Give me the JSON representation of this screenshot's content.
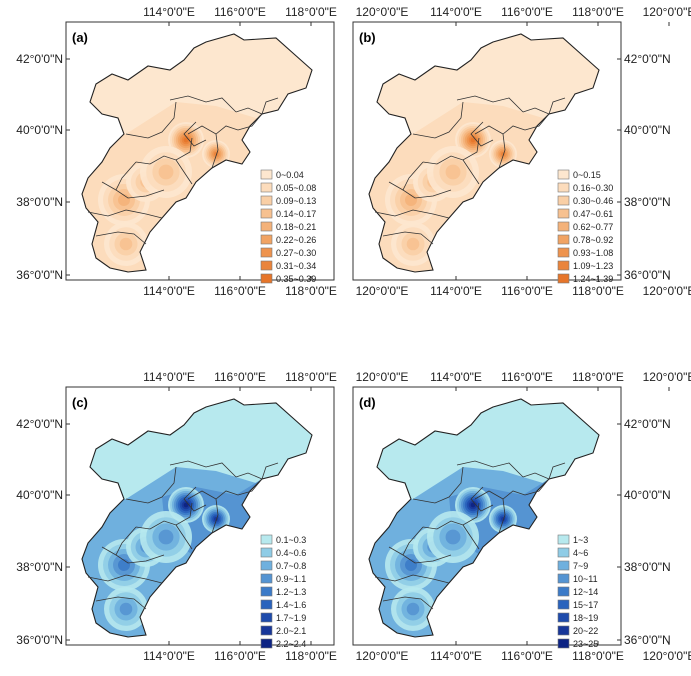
{
  "axes": {
    "lon_ticks": [
      "114°0'0\"E",
      "116°0'0\"E",
      "118°0'0\"E",
      "120°0'0\"E"
    ],
    "lat_ticks": [
      "42°0'0\"N",
      "40°0'0\"N",
      "38°0'0\"N",
      "36°0'0\"N"
    ]
  },
  "panels": [
    {
      "label": "(a)",
      "scheme": "orange",
      "legend_side": "left",
      "legend": [
        "0~0.04",
        "0.05~0.08",
        "0.09~0.13",
        "0.14~0.17",
        "0.18~0.21",
        "0.22~0.26",
        "0.27~0.30",
        "0.31~0.34",
        "0.35~0.39"
      ],
      "colors": [
        "#fde7cf",
        "#fcdcbc",
        "#f9cfa6",
        "#f7c190",
        "#f4b27a",
        "#f1a363",
        "#ee934e",
        "#ea843b",
        "#e6752a"
      ]
    },
    {
      "label": "(b)",
      "scheme": "orange",
      "legend_side": "right",
      "legend": [
        "0~0.15",
        "0.16~0.30",
        "0.30~0.46",
        "0.47~0.61",
        "0.62~0.77",
        "0.78~0.92",
        "0.93~1.08",
        "1.09~1.23",
        "1.24~1.39"
      ],
      "colors": [
        "#fde7cf",
        "#fcdcbc",
        "#f9cfa6",
        "#f7c190",
        "#f4b27a",
        "#f1a363",
        "#ee934e",
        "#ea843b",
        "#e6752a"
      ]
    },
    {
      "label": "(c)",
      "scheme": "blue",
      "legend_side": "left",
      "legend": [
        "0.1~0.3",
        "0.4~0.6",
        "0.7~0.8",
        "0.9~1.1",
        "1.2~1.3",
        "1.4~1.6",
        "1.7~1.9",
        "2.0~2.1",
        "2.2~2.4"
      ],
      "colors": [
        "#b7e9ee",
        "#8fcce6",
        "#6fb0de",
        "#5594d2",
        "#3c7bc8",
        "#2a63bd",
        "#1e4bac",
        "#183799",
        "#0d2383"
      ]
    },
    {
      "label": "(d)",
      "scheme": "blue",
      "legend_side": "right",
      "legend": [
        "1~3",
        "4~6",
        "7~9",
        "10~11",
        "12~14",
        "15~17",
        "18~19",
        "20~22",
        "23~25"
      ],
      "colors": [
        "#b7e9ee",
        "#8fcce6",
        "#6fb0de",
        "#5594d2",
        "#3c7bc8",
        "#2a63bd",
        "#1e4bac",
        "#183799",
        "#0d2383"
      ]
    }
  ]
}
